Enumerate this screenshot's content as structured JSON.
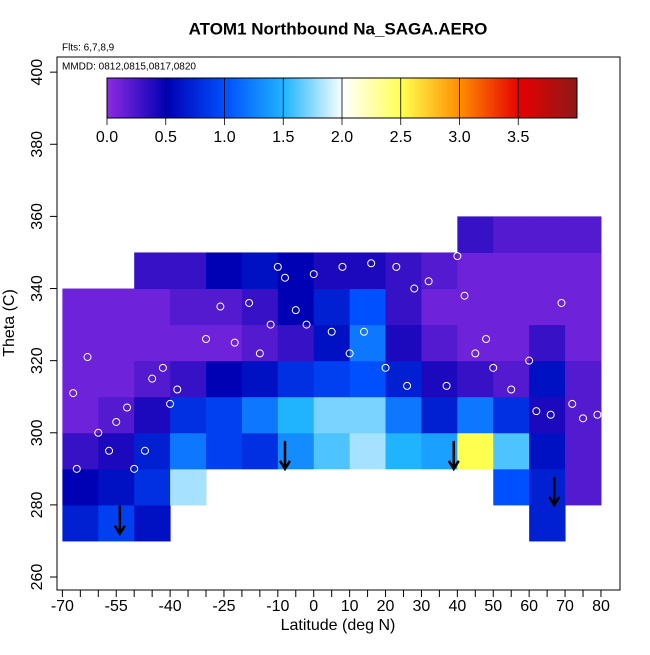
{
  "chart_data": {
    "type": "heatmap",
    "title": "ATOM1 Northbound Na_SAGA.AERO",
    "subtitle": "Flts: 6,7,8,9",
    "note": "MMDD: 0812,0815,0817,0820",
    "x_label": "Latitude (deg N)",
    "y_label": "Theta (C)",
    "xlim": [
      -71.5,
      85.3
    ],
    "ylim": [
      256.4,
      404.2
    ],
    "xticks": [
      -70,
      -55,
      -40,
      -25,
      -10,
      0,
      10,
      20,
      30,
      40,
      50,
      60,
      70,
      80
    ],
    "xminor_ticks": [
      -65,
      -60,
      -50,
      -45,
      -35,
      -30,
      -20,
      -15,
      -5,
      5,
      15,
      25,
      35,
      45,
      55,
      65,
      75
    ],
    "yticks": [
      260,
      280,
      300,
      320,
      340,
      360,
      380,
      400
    ],
    "x_edges": [
      -70,
      -60,
      -50,
      -40,
      -30,
      -20,
      -10,
      0,
      10,
      20,
      30,
      40,
      50,
      60,
      70,
      80
    ],
    "y_edges": [
      270,
      280,
      290,
      300,
      310,
      320,
      330,
      340,
      350,
      360
    ],
    "z": [
      [
        0.7,
        0.9,
        0.6,
        null,
        null,
        null,
        null,
        null,
        null,
        null,
        null,
        null,
        null,
        0.7,
        null
      ],
      [
        0.5,
        0.6,
        0.8,
        1.8,
        null,
        null,
        null,
        null,
        null,
        null,
        null,
        null,
        1.0,
        0.7,
        0.2
      ],
      [
        0.3,
        0.4,
        0.7,
        1.2,
        0.9,
        0.8,
        1.3,
        1.6,
        1.8,
        1.5,
        1.4,
        2.5,
        1.6,
        0.6,
        0.2
      ],
      [
        0.1,
        0.2,
        0.4,
        0.8,
        0.9,
        1.2,
        1.5,
        1.7,
        1.7,
        1.2,
        0.7,
        1.2,
        0.8,
        0.4,
        0.2
      ],
      [
        0.1,
        0.1,
        0.2,
        0.3,
        0.5,
        0.6,
        0.8,
        0.9,
        1.0,
        0.7,
        0.4,
        0.3,
        0.2,
        0.6,
        0.2
      ],
      [
        0.1,
        0.1,
        0.1,
        0.1,
        0.1,
        0.2,
        0.3,
        0.6,
        1.2,
        0.4,
        0.2,
        0.1,
        0.1,
        0.3,
        0.1
      ],
      [
        0.1,
        0.1,
        0.1,
        0.2,
        0.2,
        0.3,
        0.5,
        0.7,
        1.0,
        0.3,
        0.1,
        0.1,
        0.1,
        0.1,
        0.1
      ],
      [
        null,
        null,
        0.3,
        0.3,
        0.5,
        0.6,
        0.5,
        0.4,
        0.4,
        0.3,
        0.2,
        0.1,
        0.1,
        0.1,
        0.1
      ],
      [
        null,
        null,
        null,
        null,
        null,
        null,
        null,
        null,
        null,
        null,
        null,
        0.3,
        0.2,
        0.2,
        0.2
      ]
    ],
    "clim": [
      0,
      4
    ],
    "cticks": [
      {
        "value": 0,
        "label": "0.0"
      },
      {
        "value": 0.5,
        "label": "0.5"
      },
      {
        "value": 1,
        "label": "1.0"
      },
      {
        "value": 1.5,
        "label": "1.5"
      },
      {
        "value": 2,
        "label": "2.0"
      },
      {
        "value": 2.5,
        "label": "2.5"
      },
      {
        "value": 3,
        "label": "3.0"
      },
      {
        "value": 3.5,
        "label": "3.5"
      }
    ],
    "colormap": [
      {
        "value": 0,
        "color": "#8a2be2"
      },
      {
        "value": 0.5,
        "color": "#0000b4"
      },
      {
        "value": 1,
        "color": "#0050ff"
      },
      {
        "value": 1.5,
        "color": "#20b4ff"
      },
      {
        "value": 2,
        "color": "#ffffff"
      },
      {
        "value": 2.5,
        "color": "#ffff50"
      },
      {
        "value": 3,
        "color": "#ff8c00"
      },
      {
        "value": 3.5,
        "color": "#e60000"
      },
      {
        "value": 4,
        "color": "#8b1a1a"
      }
    ],
    "points": {
      "x": [
        -67,
        -66,
        -63,
        -60,
        -57,
        -55,
        -52,
        -50,
        -47,
        -45,
        -42,
        -40,
        -38,
        -30,
        -26,
        -22,
        -18,
        -15,
        -12,
        -10,
        -8,
        -5,
        -2,
        0,
        5,
        8,
        10,
        14,
        16,
        20,
        23,
        26,
        28,
        32,
        37,
        40,
        42,
        45,
        48,
        50,
        55,
        60,
        62,
        66,
        69,
        72,
        75,
        79
      ],
      "y": [
        311,
        290,
        321,
        300,
        295,
        303,
        307,
        290,
        295,
        315,
        318,
        308,
        312,
        326,
        335,
        325,
        336,
        322,
        330,
        346,
        343,
        334,
        330,
        344,
        328,
        346,
        322,
        328,
        347,
        318,
        346,
        313,
        340,
        342,
        313,
        349,
        338,
        322,
        326,
        318,
        312,
        320,
        306,
        305,
        336,
        308,
        304,
        305
      ]
    },
    "arrows": {
      "x": [
        -54,
        -8,
        39,
        67
      ],
      "y": [
        272,
        290,
        290,
        280
      ]
    }
  }
}
